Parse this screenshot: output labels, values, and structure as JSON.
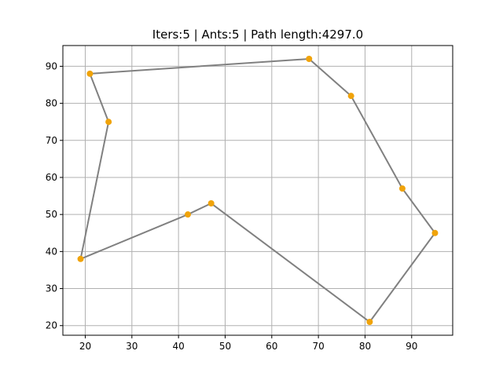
{
  "chart_data": {
    "type": "line",
    "title": "Iters:5 | Ants:5 | Path length:4297.0",
    "xlabel": "",
    "ylabel": "",
    "xlim": [
      15.2,
      98.8
    ],
    "ylim": [
      17.4,
      95.6
    ],
    "xticks": [
      20,
      30,
      40,
      50,
      60,
      70,
      80,
      90
    ],
    "yticks": [
      20,
      30,
      40,
      50,
      60,
      70,
      80,
      90
    ],
    "grid": true,
    "legend": "none",
    "series": [
      {
        "marker_color": "#f0a30a",
        "line_color": "#808080",
        "closed": true,
        "points": [
          {
            "x": 21,
            "y": 88
          },
          {
            "x": 68,
            "y": 92
          },
          {
            "x": 77,
            "y": 82
          },
          {
            "x": 88,
            "y": 57
          },
          {
            "x": 95,
            "y": 45
          },
          {
            "x": 81,
            "y": 21
          },
          {
            "x": 47,
            "y": 53
          },
          {
            "x": 42,
            "y": 50
          },
          {
            "x": 19,
            "y": 38
          },
          {
            "x": 25,
            "y": 75
          }
        ]
      }
    ]
  }
}
